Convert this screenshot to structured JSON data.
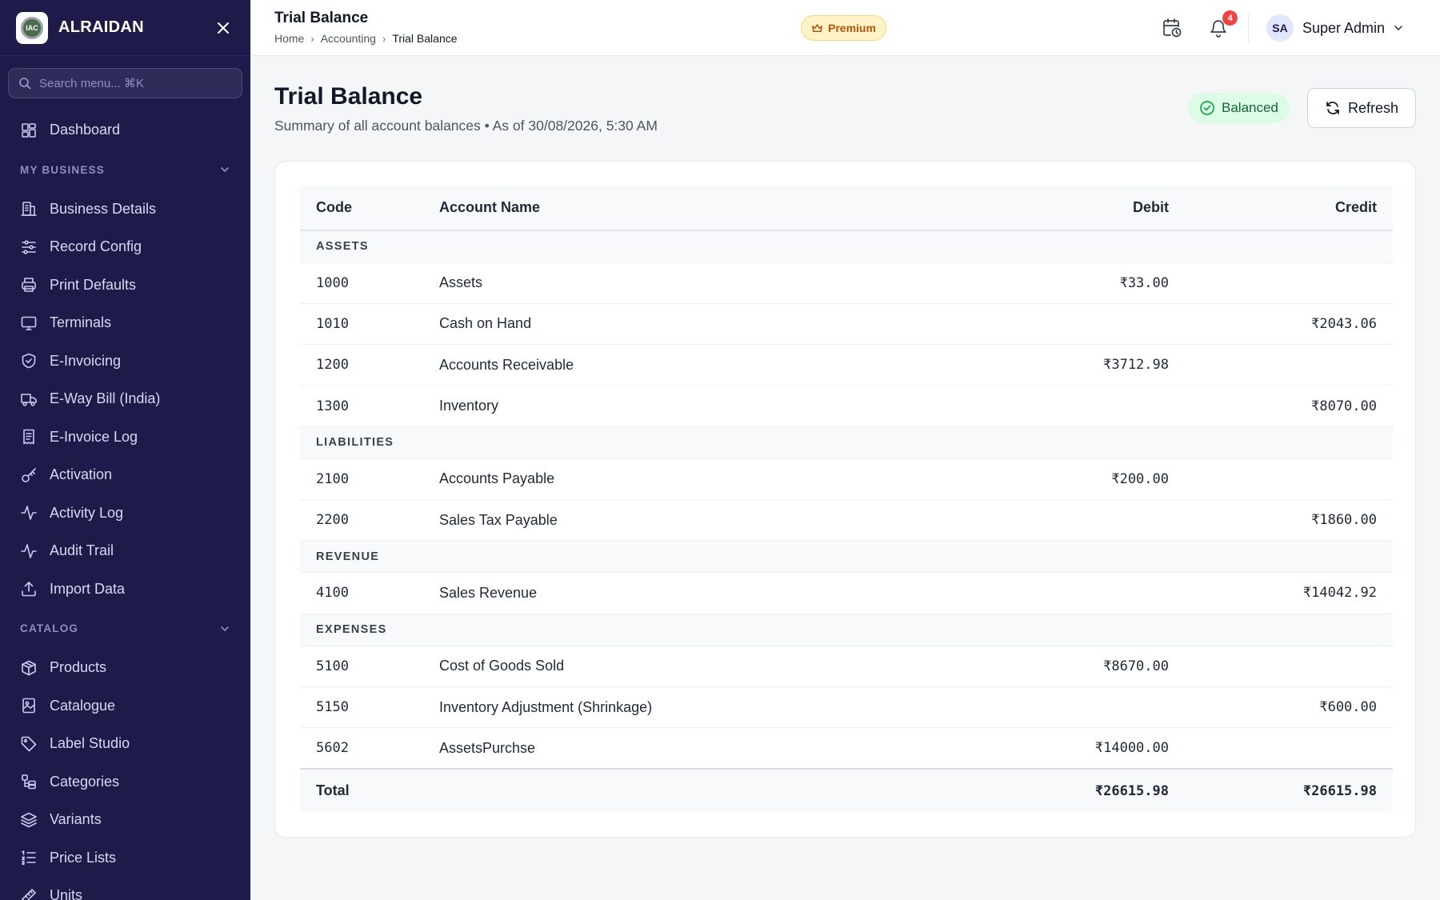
{
  "sidebar": {
    "brand": "ALRAIDAN",
    "logo_text": "IAC",
    "search_placeholder": "Search menu... ⌘K",
    "dashboard": {
      "label": "Dashboard",
      "icon": "dashboard-icon"
    },
    "sections": [
      {
        "title": "MY BUSINESS",
        "items": [
          {
            "label": "Business Details",
            "icon": "building-icon"
          },
          {
            "label": "Record Config",
            "icon": "sliders-icon"
          },
          {
            "label": "Print Defaults",
            "icon": "printer-icon"
          },
          {
            "label": "Terminals",
            "icon": "monitor-icon"
          },
          {
            "label": "E-Invoicing",
            "icon": "shield-check-icon"
          },
          {
            "label": "E-Way Bill (India)",
            "icon": "truck-icon"
          },
          {
            "label": "E-Invoice Log",
            "icon": "receipt-icon"
          },
          {
            "label": "Activation",
            "icon": "key-icon"
          },
          {
            "label": "Activity Log",
            "icon": "activity-icon"
          },
          {
            "label": "Audit Trail",
            "icon": "activity-icon"
          },
          {
            "label": "Import Data",
            "icon": "upload-icon"
          }
        ]
      },
      {
        "title": "CATALOG",
        "items": [
          {
            "label": "Products",
            "icon": "box-icon"
          },
          {
            "label": "Catalogue",
            "icon": "image-book-icon"
          },
          {
            "label": "Label Studio",
            "icon": "tag-icon"
          },
          {
            "label": "Categories",
            "icon": "categories-icon"
          },
          {
            "label": "Variants",
            "icon": "layers-icon"
          },
          {
            "label": "Price Lists",
            "icon": "list-ordered-icon"
          },
          {
            "label": "Units",
            "icon": "ruler-icon"
          }
        ]
      }
    ]
  },
  "topbar": {
    "title": "Trial Balance",
    "breadcrumb": [
      "Home",
      "Accounting",
      "Trial Balance"
    ],
    "premium_label": "Premium",
    "notification_count": "4",
    "user_initials": "SA",
    "user_name": "Super Admin"
  },
  "page": {
    "title": "Trial Balance",
    "subtitle": "Summary of all account balances • As of 30/08/2026, 5:30 AM",
    "status_label": "Balanced",
    "refresh_label": "Refresh"
  },
  "table": {
    "columns": {
      "code": "Code",
      "name": "Account Name",
      "debit": "Debit",
      "credit": "Credit"
    },
    "groups": [
      {
        "title": "ASSETS",
        "rows": [
          {
            "code": "1000",
            "name": "Assets",
            "debit": "₹33.00",
            "credit": ""
          },
          {
            "code": "1010",
            "name": "Cash on Hand",
            "debit": "",
            "credit": "₹2043.06"
          },
          {
            "code": "1200",
            "name": "Accounts Receivable",
            "debit": "₹3712.98",
            "credit": ""
          },
          {
            "code": "1300",
            "name": "Inventory",
            "debit": "",
            "credit": "₹8070.00"
          }
        ]
      },
      {
        "title": "LIABILITIES",
        "rows": [
          {
            "code": "2100",
            "name": "Accounts Payable",
            "debit": "₹200.00",
            "credit": ""
          },
          {
            "code": "2200",
            "name": "Sales Tax Payable",
            "debit": "",
            "credit": "₹1860.00"
          }
        ]
      },
      {
        "title": "REVENUE",
        "rows": [
          {
            "code": "4100",
            "name": "Sales Revenue",
            "debit": "",
            "credit": "₹14042.92"
          }
        ]
      },
      {
        "title": "EXPENSES",
        "rows": [
          {
            "code": "5100",
            "name": "Cost of Goods Sold",
            "debit": "₹8670.00",
            "credit": ""
          },
          {
            "code": "5150",
            "name": "Inventory Adjustment (Shrinkage)",
            "debit": "",
            "credit": "₹600.00"
          },
          {
            "code": "5602",
            "name": "AssetsPurchse",
            "debit": "₹14000.00",
            "credit": ""
          }
        ]
      }
    ],
    "total": {
      "label": "Total",
      "debit": "₹26615.98",
      "credit": "₹26615.98"
    }
  },
  "colors": {
    "sidebar_bg": "#1e1b4b",
    "premium_bg": "#fef3c7",
    "balanced_bg": "#dcfce7",
    "badge": "#ef4444"
  }
}
